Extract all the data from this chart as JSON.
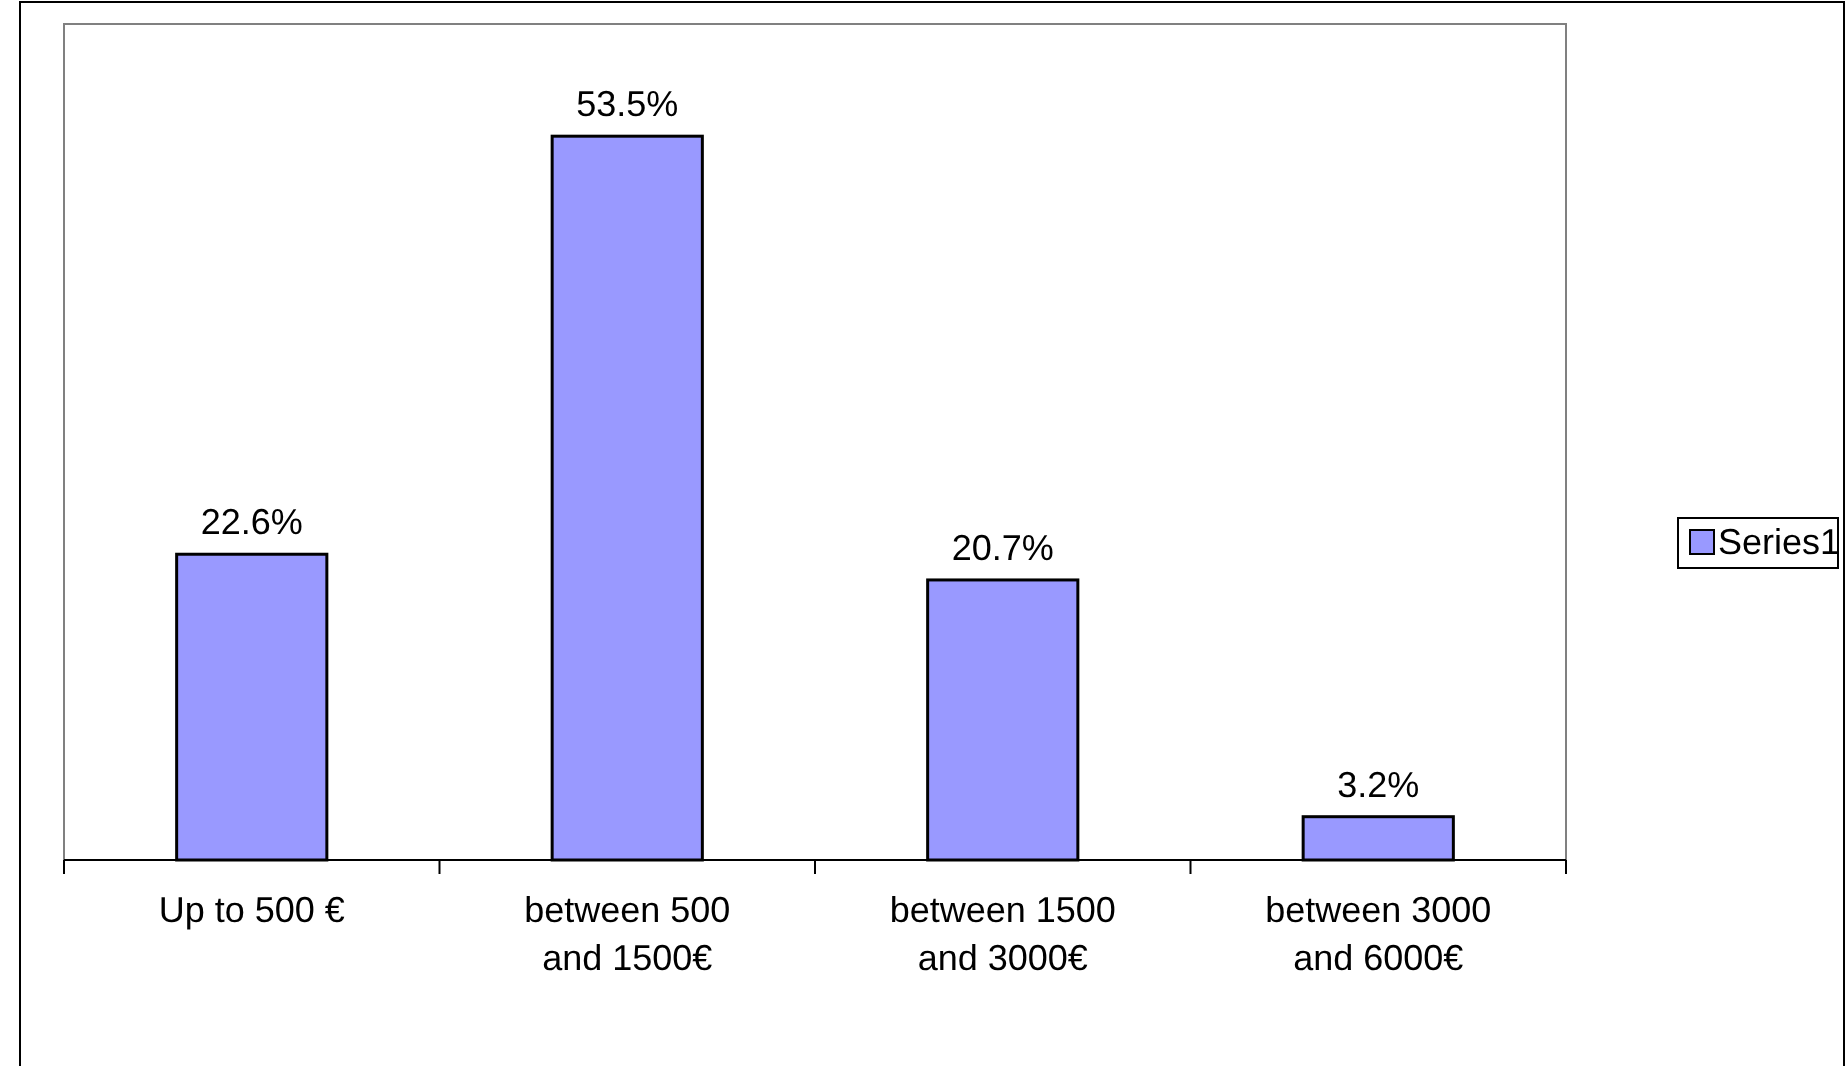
{
  "chart_data": {
    "type": "bar",
    "categories": [
      "Up to 500 €",
      "between 500\nand 1500€",
      "between 1500\nand 3000€",
      "between 3000\nand 6000€"
    ],
    "series": [
      {
        "name": "Series1",
        "color": "#9999ff",
        "values": [
          22.6,
          53.5,
          20.7,
          3.2
        ],
        "value_labels": [
          "22.6%",
          "53.5%",
          "20.7%",
          "3.2%"
        ]
      }
    ],
    "legend": "right",
    "grid": false
  }
}
